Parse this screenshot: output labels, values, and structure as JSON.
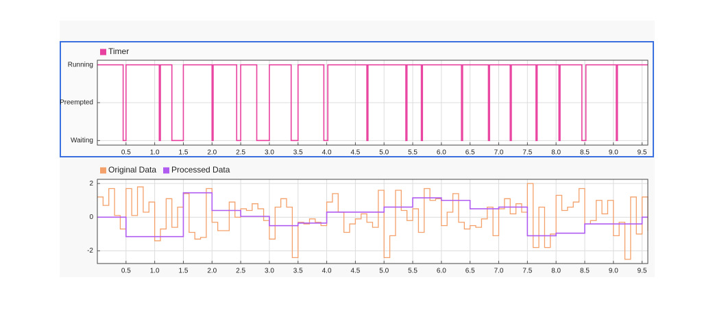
{
  "chart_data": [
    {
      "type": "step",
      "xlim": [
        0,
        9.6
      ],
      "xticks": [
        0.5,
        {
          "value": 1,
          "label": "1.0"
        },
        1.5,
        {
          "value": 2,
          "label": "2.0"
        },
        2.5,
        {
          "value": 3,
          "label": "3.0"
        },
        3.5,
        {
          "value": 4,
          "label": "4.0"
        },
        4.5,
        {
          "value": 5,
          "label": "5.0"
        },
        5.5,
        {
          "value": 6,
          "label": "6.0"
        },
        6.5,
        {
          "value": 7,
          "label": "7.0"
        },
        7.5,
        {
          "value": 8,
          "label": "8.0"
        },
        8.5,
        {
          "value": 9,
          "label": "9.0"
        },
        9.5
      ],
      "ylim": [
        -0.12,
        2.12
      ],
      "yticks": [
        {
          "value": 0,
          "label": "Waiting"
        },
        {
          "value": 1,
          "label": "Preempted"
        },
        {
          "value": 2,
          "label": "Running"
        }
      ],
      "grid": true,
      "series": [
        {
          "name": "Timer",
          "color": "#e8409e",
          "x": [
            0,
            0.45,
            0.5,
            1.08,
            1.1,
            1.3,
            1.5,
            2.0,
            2.02,
            2.43,
            2.5,
            2.78,
            3.0,
            3.38,
            3.5,
            3.95,
            4.02,
            4.7,
            4.72,
            5.38,
            5.4,
            5.65,
            5.67,
            6.35,
            6.37,
            6.82,
            6.84,
            7.2,
            7.22,
            7.65,
            7.67,
            8.05,
            8.07,
            8.45,
            8.52,
            9.05,
            9.07,
            9.6
          ],
          "values": [
            2,
            0,
            2,
            0,
            2,
            0,
            2,
            0,
            2,
            0,
            2,
            0,
            2,
            0,
            2,
            0,
            2,
            0,
            2,
            0,
            2,
            0,
            2,
            0,
            2,
            0,
            2,
            0,
            2,
            0,
            2,
            0,
            2,
            0,
            2,
            0,
            2,
            2
          ]
        }
      ]
    },
    {
      "type": "step",
      "xlim": [
        0,
        9.6
      ],
      "xticks": [
        0.5,
        {
          "value": 1,
          "label": "1.0"
        },
        1.5,
        {
          "value": 2,
          "label": "2.0"
        },
        2.5,
        {
          "value": 3,
          "label": "3.0"
        },
        3.5,
        {
          "value": 4,
          "label": "4.0"
        },
        4.5,
        {
          "value": 5,
          "label": "5.0"
        },
        5.5,
        {
          "value": 6,
          "label": "6.0"
        },
        6.5,
        {
          "value": 7,
          "label": "7.0"
        },
        7.5,
        {
          "value": 8,
          "label": "8.0"
        },
        8.5,
        {
          "value": 9,
          "label": "9.0"
        },
        9.5
      ],
      "ylim": [
        -2.75,
        2.25
      ],
      "yticks": [
        -2,
        0,
        2
      ],
      "grid": true,
      "series": [
        {
          "name": "Original Data",
          "color": "#f4a06a",
          "x": [
            0,
            0.1,
            0.2,
            0.3,
            0.4,
            0.5,
            0.6,
            0.7,
            0.8,
            0.9,
            1.0,
            1.1,
            1.2,
            1.3,
            1.4,
            1.5,
            1.6,
            1.7,
            1.8,
            1.9,
            2.0,
            2.1,
            2.2,
            2.3,
            2.4,
            2.5,
            2.6,
            2.7,
            2.8,
            2.9,
            3.0,
            3.1,
            3.2,
            3.3,
            3.4,
            3.5,
            3.6,
            3.7,
            3.8,
            3.9,
            4.0,
            4.1,
            4.2,
            4.3,
            4.4,
            4.5,
            4.6,
            4.7,
            4.8,
            4.9,
            5.0,
            5.1,
            5.2,
            5.3,
            5.4,
            5.5,
            5.6,
            5.7,
            5.8,
            5.9,
            6.0,
            6.1,
            6.2,
            6.3,
            6.4,
            6.5,
            6.6,
            6.7,
            6.8,
            6.9,
            7.0,
            7.1,
            7.2,
            7.3,
            7.4,
            7.5,
            7.6,
            7.7,
            7.8,
            7.9,
            8.0,
            8.1,
            8.2,
            8.3,
            8.4,
            8.5,
            8.6,
            8.7,
            8.8,
            8.9,
            9.0,
            9.1,
            9.2,
            9.3,
            9.4,
            9.5,
            9.6
          ],
          "values": [
            1.2,
            0.7,
            1.7,
            0.1,
            -0.7,
            1.7,
            0.1,
            1.8,
            0.3,
            0.9,
            -1.4,
            -0.7,
            1.1,
            -0.6,
            0.6,
            1.4,
            -0.9,
            -1.3,
            -1.2,
            1.7,
            -0.3,
            -0.8,
            -0.8,
            0.9,
            0.0,
            0.5,
            0.4,
            0.8,
            0.5,
            -0.2,
            -1.3,
            0.6,
            1.1,
            0.6,
            -2.4,
            -0.3,
            -0.4,
            -0.1,
            -0.3,
            -0.5,
            0.9,
            1.4,
            0.3,
            -0.9,
            -0.4,
            -0.1,
            0.2,
            -0.3,
            -0.6,
            1.6,
            -2.4,
            -1.1,
            1.6,
            0.4,
            -0.2,
            0.5,
            -0.9,
            1.7,
            1.0,
            1.1,
            -0.5,
            0.3,
            1.4,
            -0.3,
            -0.7,
            -0.5,
            -0.6,
            -0.1,
            0.6,
            -1.1,
            0.5,
            1.1,
            0.2,
            0.8,
            0.3,
            2.0,
            -1.8,
            0.6,
            -1.8,
            -1.0,
            1.3,
            0.4,
            0.6,
            0.9,
            1.7,
            -0.4,
            -0.2,
            1.0,
            0.2,
            1.0,
            -1.1,
            -0.3,
            -2.5,
            1.2,
            -1.0,
            1.2,
            -0.8
          ]
        },
        {
          "name": "Processed Data",
          "color": "#b05cf0",
          "x": [
            0,
            0.5,
            1.5,
            2.0,
            2.5,
            3.0,
            3.5,
            4.0,
            4.5,
            5.0,
            5.5,
            6.0,
            6.5,
            7.0,
            7.5,
            8.0,
            8.5,
            9.0,
            9.5,
            9.6
          ],
          "values": [
            0,
            -1.15,
            1.45,
            0.4,
            0.05,
            -0.5,
            -0.35,
            0.3,
            0.3,
            0.6,
            1.15,
            1.0,
            0.5,
            0.6,
            -1.1,
            -0.95,
            -0.4,
            -0.4,
            0,
            0
          ]
        }
      ]
    }
  ]
}
